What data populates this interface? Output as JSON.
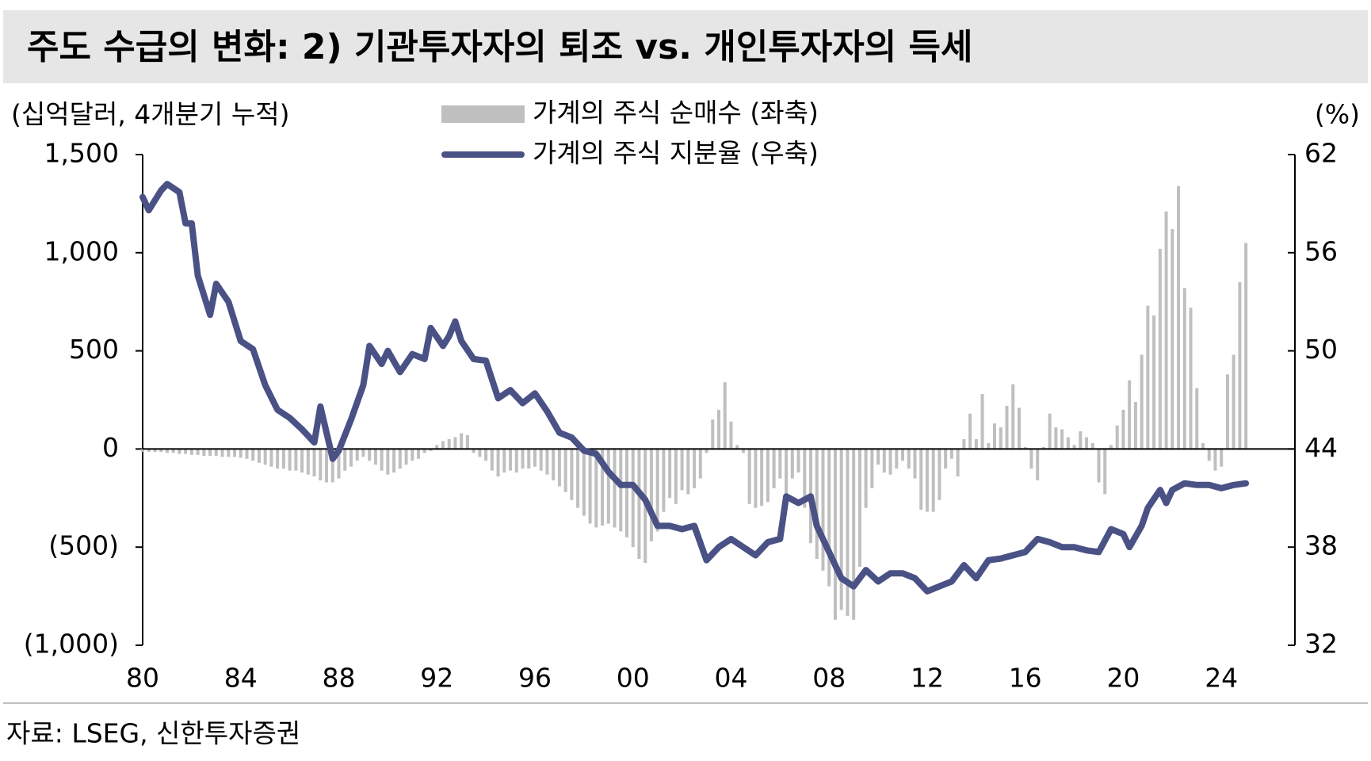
{
  "chart_data": {
    "type": "combo",
    "title": "주도 수급의 변화: 2) 기관투자자의 퇴조 vs. 개인투자자의 득세",
    "y_label": "(십억달러, 4개분기 누적)",
    "y2_label": "(%)",
    "source": "자료: LSEG, 신한투자증권",
    "xlim": [
      1980,
      2027
    ],
    "xticks": [
      {
        "value": 1980,
        "label": "80"
      },
      {
        "value": 1984,
        "label": "84"
      },
      {
        "value": 1988,
        "label": "88"
      },
      {
        "value": 1992,
        "label": "92"
      },
      {
        "value": 1996,
        "label": "96"
      },
      {
        "value": 2000,
        "label": "00"
      },
      {
        "value": 2004,
        "label": "04"
      },
      {
        "value": 2008,
        "label": "08"
      },
      {
        "value": 2012,
        "label": "12"
      },
      {
        "value": 2016,
        "label": "16"
      },
      {
        "value": 2020,
        "label": "20"
      },
      {
        "value": 2024,
        "label": "24"
      }
    ],
    "ylim": [
      -1000,
      1500
    ],
    "yticks": [
      {
        "value": 1500,
        "label": "1,500"
      },
      {
        "value": 1000,
        "label": "1,000"
      },
      500,
      0,
      {
        "value": -500,
        "label": "(500)"
      },
      {
        "value": -1000,
        "label": "(1,000)"
      }
    ],
    "y2lim": [
      32,
      62
    ],
    "y2ticks": [
      62,
      56,
      50,
      44,
      38,
      32
    ],
    "series": [
      {
        "name": "가계의 주식 순매수 (좌축)",
        "type": "bar",
        "axis": "y",
        "color": "#bfbfbf",
        "x": [
          1980,
          1980.25,
          1980.5,
          1980.75,
          1981,
          1981.25,
          1981.5,
          1981.75,
          1982,
          1982.25,
          1982.5,
          1982.75,
          1983,
          1983.25,
          1983.5,
          1983.75,
          1984,
          1984.25,
          1984.5,
          1984.75,
          1985,
          1985.25,
          1985.5,
          1985.75,
          1986,
          1986.25,
          1986.5,
          1986.75,
          1987,
          1987.25,
          1987.5,
          1987.75,
          1988,
          1988.25,
          1988.5,
          1988.75,
          1989,
          1989.25,
          1989.5,
          1989.75,
          1990,
          1990.25,
          1990.5,
          1990.75,
          1991,
          1991.25,
          1991.5,
          1991.75,
          1992,
          1992.25,
          1992.5,
          1992.75,
          1993,
          1993.25,
          1993.5,
          1993.75,
          1994,
          1994.25,
          1994.5,
          1994.75,
          1995,
          1995.25,
          1995.5,
          1995.75,
          1996,
          1996.25,
          1996.5,
          1996.75,
          1997,
          1997.25,
          1997.5,
          1997.75,
          1998,
          1998.25,
          1998.5,
          1998.75,
          1999,
          1999.25,
          1999.5,
          1999.75,
          2000,
          2000.25,
          2000.5,
          2000.75,
          2001,
          2001.25,
          2001.5,
          2001.75,
          2002,
          2002.25,
          2002.5,
          2002.75,
          2003,
          2003.25,
          2003.5,
          2003.75,
          2004,
          2004.25,
          2004.5,
          2004.75,
          2005,
          2005.25,
          2005.5,
          2005.75,
          2006,
          2006.25,
          2006.5,
          2006.75,
          2007,
          2007.25,
          2007.5,
          2007.75,
          2008,
          2008.25,
          2008.5,
          2008.75,
          2009,
          2009.25,
          2009.5,
          2009.75,
          2010,
          2010.25,
          2010.5,
          2010.75,
          2011,
          2011.25,
          2011.5,
          2011.75,
          2012,
          2012.25,
          2012.5,
          2012.75,
          2013,
          2013.25,
          2013.5,
          2013.75,
          2014,
          2014.25,
          2014.5,
          2014.75,
          2015,
          2015.25,
          2015.5,
          2015.75,
          2016,
          2016.25,
          2016.5,
          2016.75,
          2017,
          2017.25,
          2017.5,
          2017.75,
          2018,
          2018.25,
          2018.5,
          2018.75,
          2019,
          2019.25,
          2019.5,
          2019.75,
          2020,
          2020.25,
          2020.5,
          2020.75,
          2021,
          2021.25,
          2021.5,
          2021.75,
          2022,
          2022.25,
          2022.5,
          2022.75,
          2023,
          2023.25,
          2023.5,
          2023.75,
          2024,
          2024.25,
          2024.5,
          2024.75,
          2025
        ],
        "values": [
          -15,
          -15,
          -15,
          -15,
          -20,
          -20,
          -25,
          -25,
          -30,
          -30,
          -35,
          -35,
          -35,
          -40,
          -40,
          -40,
          -45,
          -50,
          -60,
          -70,
          -80,
          -90,
          -100,
          -100,
          -110,
          -110,
          -120,
          -130,
          -140,
          -160,
          -170,
          -170,
          -150,
          -110,
          -90,
          -60,
          -40,
          -60,
          -80,
          -110,
          -130,
          -120,
          -100,
          -80,
          -60,
          -50,
          -20,
          -10,
          20,
          40,
          50,
          60,
          80,
          70,
          -20,
          -40,
          -60,
          -110,
          -140,
          -120,
          -110,
          -120,
          -100,
          -100,
          -90,
          -110,
          -130,
          -160,
          -190,
          -220,
          -260,
          -300,
          -340,
          -380,
          -400,
          -390,
          -380,
          -400,
          -420,
          -450,
          -500,
          -560,
          -580,
          -470,
          -420,
          -320,
          -250,
          -280,
          -210,
          -230,
          -200,
          -150,
          -20,
          150,
          200,
          340,
          140,
          20,
          -20,
          -280,
          -300,
          -290,
          -270,
          -200,
          -150,
          -260,
          -150,
          -120,
          -300,
          -480,
          -560,
          -620,
          -700,
          -870,
          -820,
          -850,
          -870,
          -600,
          -300,
          -200,
          -80,
          -120,
          -130,
          -100,
          -60,
          -100,
          -150,
          -310,
          -320,
          -320,
          -260,
          -100,
          -50,
          -140,
          50,
          180,
          50,
          280,
          30,
          130,
          110,
          220,
          330,
          210,
          10,
          -100,
          -160,
          10,
          180,
          110,
          100,
          60,
          20,
          90,
          60,
          30,
          -170,
          -230,
          20,
          120,
          200,
          350,
          240,
          480,
          730,
          680,
          1020,
          1210,
          1120,
          1340,
          820,
          720,
          310,
          30,
          -60,
          -110,
          -90,
          380,
          480,
          850,
          1050
        ]
      },
      {
        "name": "가계의 주식 지분율 (우축)",
        "type": "line",
        "axis": "y2",
        "color": "#4a5185",
        "x": [
          1980,
          1980.25,
          1980.75,
          1981,
          1981.5,
          1981.75,
          1982,
          1982.25,
          1982.75,
          1983,
          1983.5,
          1984,
          1984.5,
          1985,
          1985.5,
          1986,
          1986.5,
          1987,
          1987.25,
          1987.75,
          1988,
          1988.5,
          1989,
          1989.25,
          1989.75,
          1990,
          1990.5,
          1991,
          1991.5,
          1991.75,
          1992.25,
          1992.5,
          1992.75,
          1993,
          1993.5,
          1994,
          1994.5,
          1995,
          1995.5,
          1996,
          1996.5,
          1997,
          1997.5,
          1998,
          1998.5,
          1999,
          1999.5,
          2000,
          2000.5,
          2001,
          2001.5,
          2002,
          2002.5,
          2003,
          2003.5,
          2004,
          2004.5,
          2005,
          2005.5,
          2006,
          2006.25,
          2006.75,
          2007.25,
          2007.5,
          2008,
          2008.5,
          2009,
          2009.5,
          2010,
          2010.5,
          2011,
          2011.5,
          2012,
          2012.5,
          2013,
          2013.5,
          2014,
          2014.5,
          2015,
          2015.5,
          2016,
          2016.5,
          2017,
          2017.5,
          2018,
          2018.5,
          2019,
          2019.5,
          2020,
          2020.25,
          2020.75,
          2021,
          2021.5,
          2021.75,
          2022,
          2022.5,
          2023,
          2023.5,
          2024,
          2024.5,
          2025
        ],
        "values": [
          59.4,
          58.6,
          59.8,
          60.2,
          59.7,
          57.8,
          57.8,
          54.6,
          52.2,
          54.1,
          53,
          50.6,
          50.1,
          47.9,
          46.4,
          45.9,
          45.2,
          44.4,
          46.6,
          43.4,
          43.9,
          45.8,
          47.9,
          50.3,
          49.2,
          50,
          48.7,
          49.8,
          49.5,
          51.4,
          50.3,
          50.9,
          51.8,
          50.6,
          49.5,
          49.4,
          47.1,
          47.6,
          46.8,
          47.4,
          46.3,
          45,
          44.7,
          43.9,
          43.7,
          42.6,
          41.8,
          41.8,
          40.9,
          39.3,
          39.3,
          39.1,
          39.3,
          37.2,
          38,
          38.5,
          38,
          37.5,
          38.3,
          38.5,
          41.1,
          40.7,
          41.1,
          39.3,
          37.7,
          36.1,
          35.6,
          36.6,
          35.9,
          36.4,
          36.4,
          36.1,
          35.3,
          35.6,
          35.9,
          36.9,
          36.1,
          37.2,
          37.3,
          37.5,
          37.7,
          38.5,
          38.3,
          38,
          38,
          37.8,
          37.7,
          39.1,
          38.8,
          38,
          39.3,
          40.4,
          41.5,
          40.7,
          41.5,
          41.9,
          41.8,
          41.8,
          41.6,
          41.8,
          41.9
        ]
      }
    ]
  }
}
